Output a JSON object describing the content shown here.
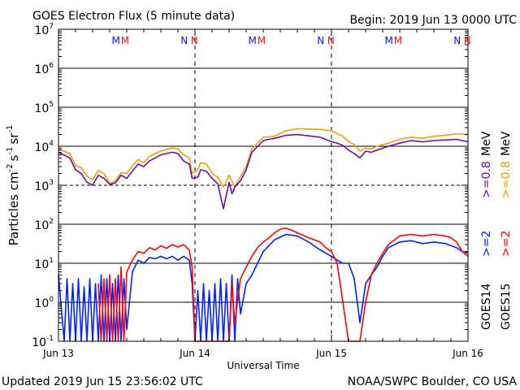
{
  "header": {
    "title": "GOES Electron Flux (5 minute data)",
    "begin": "Begin: 2019 Jun 13 0000 UTC"
  },
  "footer": {
    "updated": "Updated 2019 Jun 15 23:56:02 UTC",
    "credit": "NOAA/SWPC Boulder, CO USA"
  },
  "colors": {
    "goes14_08": "#6a0dad",
    "goes15_08": "#f0a000",
    "goes14_2": "#0022ff",
    "goes15_2": "#ff0000",
    "marker_m": "#1010ff",
    "marker_n": "#ff1010"
  },
  "chart_data": {
    "type": "line",
    "xlabel": "Universal Time",
    "ylabel_parts": [
      "Particles cm",
      "-2",
      "s",
      "-1",
      "sr",
      "-1"
    ],
    "yscale": "log",
    "ylim": [
      0.1,
      10000000
    ],
    "xlim": [
      0,
      72
    ],
    "x_units": "hours since 2019 Jun 13 0000 UTC",
    "y_ticks": [
      {
        "base": "10",
        "exp": "7",
        "value": 10000000
      },
      {
        "base": "10",
        "exp": "6",
        "value": 1000000
      },
      {
        "base": "10",
        "exp": "5",
        "value": 100000
      },
      {
        "base": "10",
        "exp": "4",
        "value": 10000
      },
      {
        "base": "10",
        "exp": "3",
        "value": 1000
      },
      {
        "base": "10",
        "exp": "2",
        "value": 100
      },
      {
        "base": "10",
        "exp": "1",
        "value": 10
      },
      {
        "base": "10",
        "exp": "0",
        "value": 1
      },
      {
        "base": "10",
        "exp": "-1",
        "value": 0.1
      }
    ],
    "x_ticks": [
      {
        "label": "Jun 13",
        "x": 0
      },
      {
        "label": "Jun 14",
        "x": 24
      },
      {
        "label": "Jun 15",
        "x": 48
      },
      {
        "label": "Jun 16",
        "x": 72
      }
    ],
    "hlines_solid": [
      1000000,
      100000,
      10000,
      100,
      10,
      1
    ],
    "hlines_dashed": [
      1000
    ],
    "vlines_dashed": [
      24,
      48
    ],
    "markers": [
      {
        "label": "M",
        "x": 10.1,
        "color": "#1010ff"
      },
      {
        "label": "M",
        "x": 11.7,
        "color": "#ff1010"
      },
      {
        "label": "N",
        "x": 22.1,
        "color": "#1010ff"
      },
      {
        "label": "N",
        "x": 23.9,
        "color": "#ff1010"
      },
      {
        "label": "M",
        "x": 34.1,
        "color": "#1010ff"
      },
      {
        "label": "M",
        "x": 35.7,
        "color": "#ff1010"
      },
      {
        "label": "N",
        "x": 46.1,
        "color": "#1010ff"
      },
      {
        "label": "N",
        "x": 47.9,
        "color": "#ff1010"
      },
      {
        "label": "M",
        "x": 58.1,
        "color": "#1010ff"
      },
      {
        "label": "M",
        "x": 59.7,
        "color": "#ff1010"
      },
      {
        "label": "N",
        "x": 70.1,
        "color": "#1010ff"
      },
      {
        "label": "N",
        "x": 71.9,
        "color": "#ff1010"
      }
    ],
    "legend": {
      "goes14": "GOES14",
      "goes15": "GOES15",
      "goes14_2": ">=2",
      "goes15_2": ">=2",
      "goes14_08": ">=0.8",
      "goes15_08": ">=0.8",
      "unit": "MeV"
    },
    "series": [
      {
        "name": "GOES15 >=0.8 MeV",
        "color": "#f0a000",
        "points": [
          [
            0,
            8500
          ],
          [
            2,
            6500
          ],
          [
            3,
            3200
          ],
          [
            4,
            2800
          ],
          [
            5,
            1700
          ],
          [
            6,
            1400
          ],
          [
            7,
            2400
          ],
          [
            8,
            2000
          ],
          [
            9,
            1100
          ],
          [
            10,
            1300
          ],
          [
            11,
            2100
          ],
          [
            12,
            2000
          ],
          [
            13,
            3200
          ],
          [
            14,
            4500
          ],
          [
            15,
            3800
          ],
          [
            16,
            5500
          ],
          [
            17,
            6500
          ],
          [
            18,
            7500
          ],
          [
            20,
            9000
          ],
          [
            21,
            8500
          ],
          [
            22,
            6000
          ],
          [
            23,
            5000
          ],
          [
            23.5,
            2000
          ],
          [
            24.5,
            2500
          ],
          [
            25,
            3800
          ],
          [
            26,
            3500
          ],
          [
            27,
            2000
          ],
          [
            28,
            1600
          ],
          [
            29,
            900
          ],
          [
            30,
            1800
          ],
          [
            31,
            900
          ],
          [
            32,
            1700
          ],
          [
            33,
            3000
          ],
          [
            34,
            8500
          ],
          [
            36,
            17000
          ],
          [
            37,
            17500
          ],
          [
            38,
            18000
          ],
          [
            40,
            25000
          ],
          [
            42,
            28000
          ],
          [
            46,
            27000
          ],
          [
            48,
            25000
          ],
          [
            49,
            21000
          ],
          [
            50,
            18000
          ],
          [
            51,
            13000
          ],
          [
            52,
            11000
          ],
          [
            53,
            7500
          ],
          [
            54,
            9000
          ],
          [
            55,
            8500
          ],
          [
            56,
            10000
          ],
          [
            58,
            12000
          ],
          [
            60,
            15000
          ],
          [
            62,
            17000
          ],
          [
            64,
            16000
          ],
          [
            66,
            18000
          ],
          [
            68,
            19000
          ],
          [
            70,
            21000
          ],
          [
            72,
            20000
          ]
        ]
      },
      {
        "name": "GOES14 >=0.8 MeV",
        "color": "#6a0dad",
        "points": [
          [
            0,
            7000
          ],
          [
            2,
            5000
          ],
          [
            3,
            2500
          ],
          [
            4,
            2000
          ],
          [
            5,
            1200
          ],
          [
            6,
            1000
          ],
          [
            7,
            1800
          ],
          [
            8,
            1500
          ],
          [
            9,
            1050
          ],
          [
            10,
            1150
          ],
          [
            11,
            1800
          ],
          [
            12,
            1500
          ],
          [
            13,
            2300
          ],
          [
            14,
            3500
          ],
          [
            15,
            3000
          ],
          [
            16,
            4200
          ],
          [
            17,
            5000
          ],
          [
            18,
            6000
          ],
          [
            20,
            7000
          ],
          [
            21,
            6500
          ],
          [
            22,
            4200
          ],
          [
            23,
            3500
          ],
          [
            23.5,
            1500
          ],
          [
            24.5,
            1600
          ],
          [
            25,
            2500
          ],
          [
            26,
            2300
          ],
          [
            27,
            1500
          ],
          [
            28,
            1100
          ],
          [
            29,
            250
          ],
          [
            30,
            1200
          ],
          [
            30.5,
            600
          ],
          [
            31,
            900
          ],
          [
            32,
            1300
          ],
          [
            33,
            2500
          ],
          [
            34,
            7000
          ],
          [
            36,
            14000
          ],
          [
            37,
            15000
          ],
          [
            38,
            16000
          ],
          [
            40,
            19000
          ],
          [
            42,
            20000
          ],
          [
            46,
            17000
          ],
          [
            48,
            13000
          ],
          [
            49,
            12000
          ],
          [
            50,
            10500
          ],
          [
            51,
            8000
          ],
          [
            52,
            6500
          ],
          [
            53,
            5000
          ],
          [
            54,
            7500
          ],
          [
            55,
            7000
          ],
          [
            56,
            8000
          ],
          [
            58,
            10000
          ],
          [
            60,
            12000
          ],
          [
            62,
            14000
          ],
          [
            64,
            13000
          ],
          [
            66,
            14000
          ],
          [
            68,
            14500
          ],
          [
            70,
            15000
          ],
          [
            72,
            13000
          ]
        ]
      },
      {
        "name": "GOES14 >=2 MeV",
        "color": "#0022ff",
        "points": [
          [
            0,
            5
          ],
          [
            1,
            0.1
          ],
          [
            1.5,
            4
          ],
          [
            2,
            0.1
          ],
          [
            2.5,
            3
          ],
          [
            3,
            0.1
          ],
          [
            3.5,
            4
          ],
          [
            4,
            0.1
          ],
          [
            4.5,
            2.5
          ],
          [
            5,
            0.1
          ],
          [
            5.5,
            4
          ],
          [
            6,
            0.1
          ],
          [
            6.5,
            3
          ],
          [
            7,
            0.1
          ],
          [
            7.5,
            5
          ],
          [
            8,
            0.1
          ],
          [
            8.5,
            4
          ],
          [
            9,
            0.1
          ],
          [
            9.5,
            3
          ],
          [
            10,
            0.1
          ],
          [
            10.5,
            5
          ],
          [
            11,
            0.1
          ],
          [
            11.5,
            4
          ],
          [
            12,
            0.2
          ],
          [
            13,
            6
          ],
          [
            14,
            12
          ],
          [
            15,
            10
          ],
          [
            16,
            14
          ],
          [
            17,
            13
          ],
          [
            18,
            15
          ],
          [
            19,
            13
          ],
          [
            20,
            15
          ],
          [
            21,
            12
          ],
          [
            22,
            15
          ],
          [
            23,
            12
          ],
          [
            23.5,
            3
          ],
          [
            24,
            0.1
          ],
          [
            24.5,
            2
          ],
          [
            25,
            0.1
          ],
          [
            25.5,
            3
          ],
          [
            26,
            0.1
          ],
          [
            26.5,
            2
          ],
          [
            27,
            0.1
          ],
          [
            27.5,
            3
          ],
          [
            28,
            0.1
          ],
          [
            28.5,
            4
          ],
          [
            29,
            0.1
          ],
          [
            29.5,
            3
          ],
          [
            30,
            0.1
          ],
          [
            30.5,
            5
          ],
          [
            31,
            0.1
          ],
          [
            31.5,
            4
          ],
          [
            32,
            0.5
          ],
          [
            33,
            3
          ],
          [
            34,
            5
          ],
          [
            35,
            10
          ],
          [
            36,
            20
          ],
          [
            38,
            40
          ],
          [
            40,
            55
          ],
          [
            42,
            50
          ],
          [
            44,
            35
          ],
          [
            46,
            22
          ],
          [
            47,
            18
          ],
          [
            48,
            15
          ],
          [
            49,
            12
          ],
          [
            50,
            10
          ],
          [
            51,
            10
          ],
          [
            52,
            4
          ],
          [
            53,
            0.3
          ],
          [
            54,
            3
          ],
          [
            55,
            5
          ],
          [
            56,
            8
          ],
          [
            57,
            15
          ],
          [
            58,
            25
          ],
          [
            60,
            35
          ],
          [
            62,
            38
          ],
          [
            64,
            32
          ],
          [
            66,
            35
          ],
          [
            68,
            32
          ],
          [
            70,
            25
          ],
          [
            71,
            20
          ],
          [
            72,
            18
          ]
        ]
      },
      {
        "name": "GOES15 >=2 MeV",
        "color": "#ff0000",
        "points": [
          [
            7,
            3
          ],
          [
            7.5,
            0.1
          ],
          [
            8,
            4
          ],
          [
            8.5,
            0.1
          ],
          [
            9,
            5
          ],
          [
            9.5,
            0.1
          ],
          [
            10,
            4
          ],
          [
            10.5,
            0.1
          ],
          [
            11,
            8
          ],
          [
            11.5,
            0.1
          ],
          [
            12,
            6
          ],
          [
            13,
            12
          ],
          [
            14,
            20
          ],
          [
            15,
            18
          ],
          [
            16,
            25
          ],
          [
            17,
            22
          ],
          [
            18,
            28
          ],
          [
            19,
            24
          ],
          [
            20,
            30
          ],
          [
            21,
            26
          ],
          [
            22,
            30
          ],
          [
            23,
            22
          ],
          [
            23.5,
            8
          ],
          [
            24,
            0.1
          ],
          [
            30,
            0.1
          ],
          [
            30.5,
            3
          ],
          [
            31,
            0.3
          ],
          [
            32,
            4
          ],
          [
            33,
            8
          ],
          [
            34,
            15
          ],
          [
            35,
            25
          ],
          [
            36,
            35
          ],
          [
            37,
            45
          ],
          [
            38,
            60
          ],
          [
            39,
            75
          ],
          [
            40,
            80
          ],
          [
            41,
            70
          ],
          [
            42,
            60
          ],
          [
            44,
            45
          ],
          [
            46,
            35
          ],
          [
            47,
            25
          ],
          [
            48,
            20
          ],
          [
            49,
            10
          ],
          [
            50,
            1
          ],
          [
            51,
            0.1
          ],
          [
            53,
            0.1
          ],
          [
            54,
            1
          ],
          [
            55,
            5
          ],
          [
            56,
            10
          ],
          [
            57,
            18
          ],
          [
            58,
            30
          ],
          [
            60,
            50
          ],
          [
            62,
            55
          ],
          [
            64,
            50
          ],
          [
            66,
            55
          ],
          [
            68,
            50
          ],
          [
            69,
            45
          ],
          [
            70,
            35
          ],
          [
            71,
            20
          ],
          [
            72,
            15
          ]
        ]
      }
    ]
  }
}
